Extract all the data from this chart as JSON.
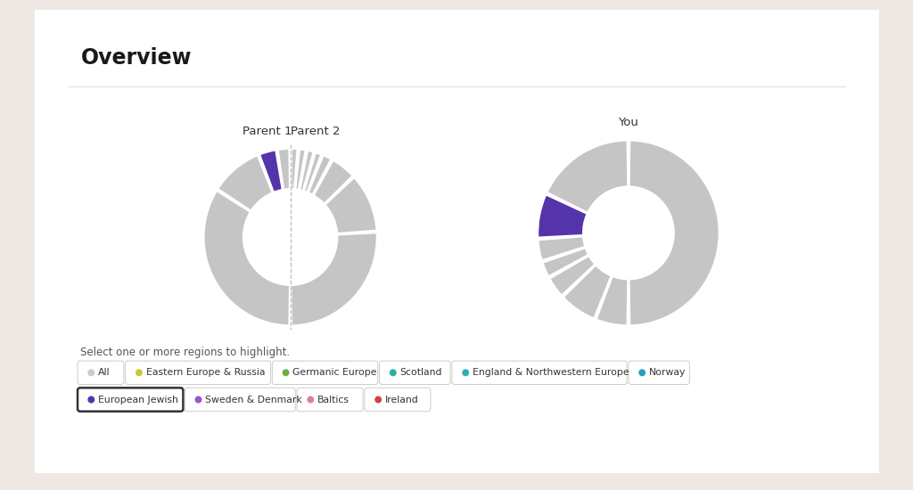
{
  "title": "Overview",
  "background_color": "#ede8e3",
  "card_color": "#ffffff",
  "parent1_label": "Parent 1",
  "parent2_label": "Parent 2",
  "you_label": "You",
  "highlight_color": "#5533aa",
  "gray_color": "#c5c5c5",
  "gap_color": "#ffffff",
  "parent1_segments": [
    {
      "value": 52,
      "highlighted": false
    },
    {
      "value": 22,
      "highlighted": false
    },
    {
      "value": 10,
      "highlighted": false
    },
    {
      "value": 4,
      "highlighted": false
    },
    {
      "value": 3,
      "highlighted": false
    },
    {
      "value": 3,
      "highlighted": false
    },
    {
      "value": 3,
      "highlighted": false
    },
    {
      "value": 3,
      "highlighted": false
    }
  ],
  "parent2_segments": [
    {
      "value": 68,
      "highlighted": false
    },
    {
      "value": 20,
      "highlighted": false
    },
    {
      "value": 7,
      "highlighted": true
    },
    {
      "value": 5,
      "highlighted": false
    }
  ],
  "you_segments": [
    {
      "value": 50,
      "highlighted": false
    },
    {
      "value": 18,
      "highlighted": false
    },
    {
      "value": 8,
      "highlighted": true
    },
    {
      "value": 4,
      "highlighted": false
    },
    {
      "value": 3,
      "highlighted": false
    },
    {
      "value": 4,
      "highlighted": false
    },
    {
      "value": 7,
      "highlighted": false
    },
    {
      "value": 6,
      "highlighted": false
    }
  ],
  "select_text": "Select one or more regions to highlight.",
  "legend_row1": [
    {
      "label": "All",
      "color": "#cccccc",
      "selected": false
    },
    {
      "label": "Eastern Europe & Russia",
      "color": "#c8c832",
      "selected": false
    },
    {
      "label": "Germanic Europe",
      "color": "#6ab040",
      "selected": false
    },
    {
      "label": "Scotland",
      "color": "#28b0a0",
      "selected": false
    },
    {
      "label": "England & Northwestern Europe",
      "color": "#28b0b8",
      "selected": false
    },
    {
      "label": "Norway",
      "color": "#28a0c0",
      "selected": false
    }
  ],
  "legend_row2": [
    {
      "label": "European Jewish",
      "color": "#5533aa",
      "selected": true
    },
    {
      "label": "Sweden & Denmark",
      "color": "#9955cc",
      "selected": false
    },
    {
      "label": "Baltics",
      "color": "#e080a0",
      "selected": false
    },
    {
      "label": "Ireland",
      "color": "#cc4444",
      "selected": false
    }
  ]
}
